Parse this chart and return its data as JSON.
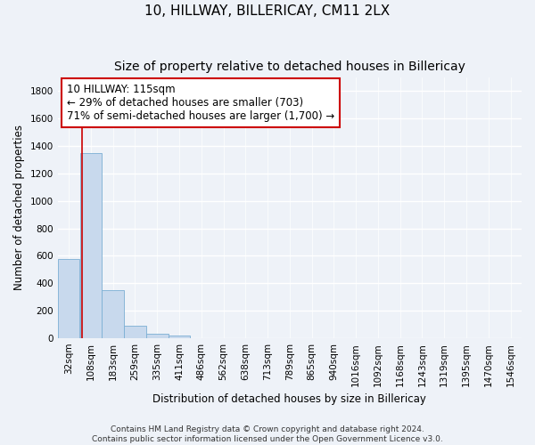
{
  "title": "10, HILLWAY, BILLERICAY, CM11 2LX",
  "subtitle": "Size of property relative to detached houses in Billericay",
  "xlabel": "Distribution of detached houses by size in Billericay",
  "ylabel": "Number of detached properties",
  "footer_line1": "Contains HM Land Registry data © Crown copyright and database right 2024.",
  "footer_line2": "Contains public sector information licensed under the Open Government Licence v3.0.",
  "bar_color": "#c8d9ed",
  "bar_edge_color": "#7bafd4",
  "annotation_box_color": "#cc0000",
  "annotation_line1": "10 HILLWAY: 115sqm",
  "annotation_line2": "← 29% of detached houses are smaller (703)",
  "annotation_line3": "71% of semi-detached houses are larger (1,700) →",
  "property_line_x": 115,
  "categories": [
    "32sqm",
    "108sqm",
    "183sqm",
    "259sqm",
    "335sqm",
    "411sqm",
    "486sqm",
    "562sqm",
    "638sqm",
    "713sqm",
    "789sqm",
    "865sqm",
    "940sqm",
    "1016sqm",
    "1092sqm",
    "1168sqm",
    "1243sqm",
    "1319sqm",
    "1395sqm",
    "1470sqm",
    "1546sqm"
  ],
  "bin_edges": [
    32,
    108,
    183,
    259,
    335,
    411,
    486,
    562,
    638,
    713,
    789,
    865,
    940,
    1016,
    1092,
    1168,
    1243,
    1319,
    1395,
    1470,
    1546
  ],
  "values": [
    580,
    1350,
    350,
    90,
    30,
    20,
    0,
    0,
    0,
    0,
    0,
    0,
    0,
    0,
    0,
    0,
    0,
    0,
    0,
    0
  ],
  "ylim": [
    0,
    1900
  ],
  "yticks": [
    0,
    200,
    400,
    600,
    800,
    1000,
    1200,
    1400,
    1600,
    1800
  ],
  "background_color": "#eef2f8",
  "grid_color": "#d8e0ec",
  "title_fontsize": 11,
  "subtitle_fontsize": 10,
  "axis_label_fontsize": 8.5,
  "tick_fontsize": 7.5,
  "annotation_fontsize": 8.5,
  "footer_fontsize": 6.5
}
